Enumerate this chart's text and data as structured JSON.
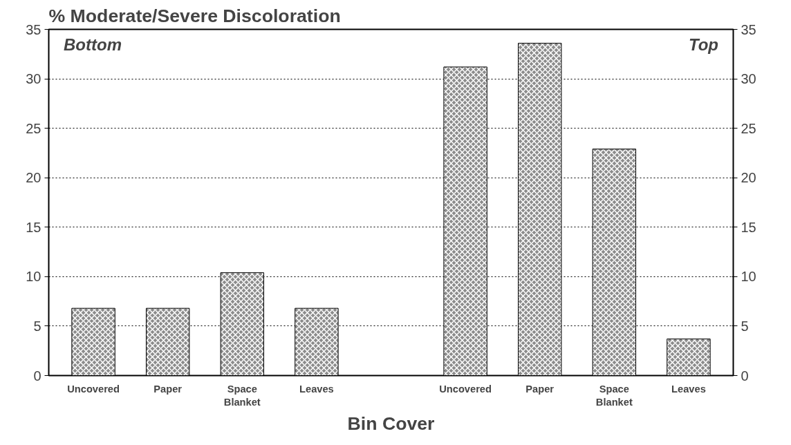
{
  "chart_data": {
    "type": "bar",
    "title": "% Moderate/Severe Discoloration",
    "xlabel": "Bin Cover",
    "categories": [
      "Uncovered",
      "Paper",
      "Space\nBlanket",
      "Leaves",
      null,
      "Uncovered",
      "Paper",
      "Space\nBlanket",
      "Leaves"
    ],
    "values": [
      6.8,
      6.8,
      10.4,
      6.8,
      null,
      31.2,
      33.6,
      22.9,
      3.7
    ],
    "color": "#8c8c8c",
    "ylim": [
      0,
      35
    ],
    "yticks": [
      0,
      5,
      10,
      15,
      20,
      25,
      30,
      35
    ],
    "y2lim": [
      0,
      35
    ],
    "y2ticks": [
      0,
      5,
      10,
      15,
      20,
      25,
      30,
      35
    ],
    "grid": "y",
    "annotations": [
      "Bottom",
      "Top"
    ]
  }
}
